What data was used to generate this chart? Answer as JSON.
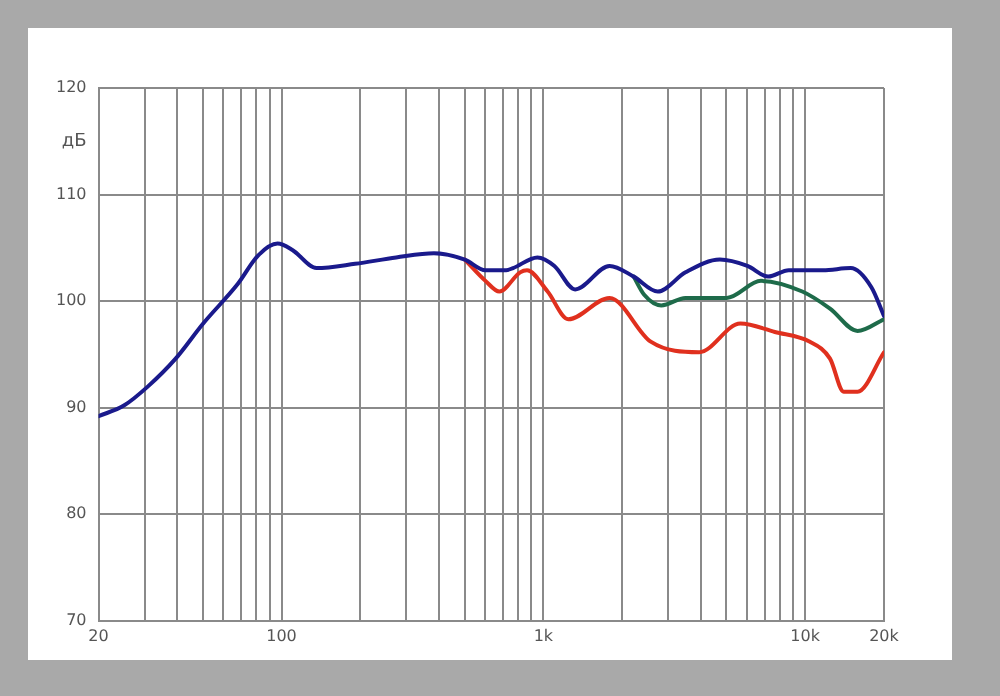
{
  "chart_data": {
    "type": "line",
    "ylabel": "дБ",
    "log": "x",
    "grid": true,
    "marker": "none",
    "xlim": [
      20,
      20000
    ],
    "ylim": [
      70,
      120
    ],
    "xticks": [
      20,
      {
        "value": 30,
        "label": null
      },
      {
        "value": 40,
        "label": null
      },
      {
        "value": 50,
        "label": null
      },
      {
        "value": 60,
        "label": null
      },
      {
        "value": 70,
        "label": null
      },
      {
        "value": 80,
        "label": null
      },
      {
        "value": 90,
        "label": null
      },
      100,
      {
        "value": 200,
        "label": null
      },
      {
        "value": 300,
        "label": null
      },
      {
        "value": 400,
        "label": null
      },
      {
        "value": 500,
        "label": null
      },
      {
        "value": 600,
        "label": null
      },
      {
        "value": 700,
        "label": null
      },
      {
        "value": 800,
        "label": null
      },
      {
        "value": 900,
        "label": null
      },
      {
        "value": 1000,
        "label": "1k"
      },
      {
        "value": 2000,
        "label": null
      },
      {
        "value": 3000,
        "label": null
      },
      {
        "value": 4000,
        "label": null
      },
      {
        "value": 5000,
        "label": null
      },
      {
        "value": 6000,
        "label": null
      },
      {
        "value": 7000,
        "label": null
      },
      {
        "value": 8000,
        "label": null
      },
      {
        "value": 9000,
        "label": null
      },
      {
        "value": 10000,
        "label": "10k"
      },
      {
        "value": 20000,
        "label": "20k"
      }
    ],
    "yticks": [
      70,
      80,
      90,
      100,
      110,
      120
    ],
    "series": [
      {
        "color": "#1a1a8c",
        "x": [
          20,
          25,
          30.9,
          39.4,
          50.2,
          68,
          81.5,
          96.5,
          110,
          136,
          191,
          274,
          382,
          501,
          601,
          721,
          766,
          949,
          1102,
          1322,
          1790,
          2213,
          2735,
          3491,
          4722,
          6016,
          7216,
          8656,
          11700,
          14920,
          17900,
          20000
        ],
        "values": [
          89.2,
          90.2,
          92.0,
          94.6,
          97.9,
          101.6,
          104.3,
          105.4,
          104.8,
          103.1,
          103.5,
          104.1,
          104.5,
          103.9,
          102.9,
          102.9,
          103.1,
          104.1,
          103.3,
          101.1,
          103.3,
          102.3,
          100.9,
          102.7,
          103.9,
          103.3,
          102.3,
          102.9,
          102.9,
          103.1,
          101.3,
          98.6
        ]
      },
      {
        "color": "#1e6b4a",
        "x": [
          2213,
          2427,
          2820,
          3491,
          5014,
          6780,
          9750,
          12440,
          15850,
          20000
        ],
        "values": [
          102.3,
          100.6,
          99.6,
          100.3,
          100.3,
          101.9,
          100.9,
          99.3,
          97.2,
          98.3
        ]
      },
      {
        "color": "#e0301e",
        "x": [
          501,
          601,
          679,
          815,
          866,
          1038,
          1245,
          1790,
          2571,
          3935,
          5652,
          7660,
          10380,
          12440,
          14030,
          15850,
          20000
        ],
        "values": [
          103.9,
          101.9,
          100.9,
          102.7,
          102.9,
          100.9,
          98.3,
          100.3,
          96.2,
          95.2,
          97.9,
          97.1,
          96.2,
          94.6,
          91.5,
          91.5,
          95.2
        ]
      }
    ]
  }
}
